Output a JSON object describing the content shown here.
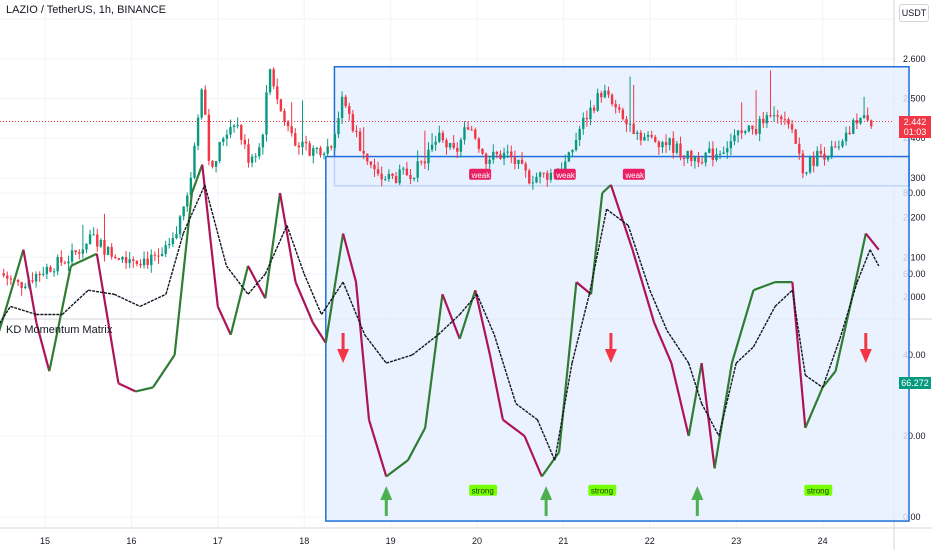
{
  "header": {
    "title": "LAZIO / TetherUS, 1h, BINANCE",
    "currency": "USDT",
    "last_price": "2.442",
    "countdown": "01:03"
  },
  "indicator": {
    "title": "KD Momentum Matrix",
    "last_value": "66.272"
  },
  "chart_data": [
    {
      "type": "candlestick",
      "title": "LAZIO / TetherUS, 1h, BINANCE",
      "x_ticks": [
        "15",
        "16",
        "17",
        "18",
        "19",
        "20",
        "21",
        "22",
        "23",
        "24"
      ],
      "y_ticks": [
        "2.000",
        "2.100",
        "2.200",
        "2.300",
        "2.400",
        "2.500",
        "2.600",
        "2.700"
      ],
      "ylim": [
        1.99,
        2.72
      ],
      "last_price": 2.442,
      "range_box": {
        "x_start": 18.35,
        "x_end": 25.0,
        "y_low": 2.28,
        "y_high": 2.58
      },
      "close_series": [
        {
          "x": 14.48,
          "y": 2.06
        },
        {
          "x": 14.7,
          "y": 2.03
        },
        {
          "x": 14.85,
          "y": 2.05
        },
        {
          "x": 15.0,
          "y": 2.07
        },
        {
          "x": 15.3,
          "y": 2.1
        },
        {
          "x": 15.55,
          "y": 2.15
        },
        {
          "x": 15.75,
          "y": 2.11
        },
        {
          "x": 16.0,
          "y": 2.1
        },
        {
          "x": 16.3,
          "y": 2.09
        },
        {
          "x": 16.5,
          "y": 2.14
        },
        {
          "x": 16.7,
          "y": 2.32
        },
        {
          "x": 16.82,
          "y": 2.55
        },
        {
          "x": 16.92,
          "y": 2.3
        },
        {
          "x": 17.05,
          "y": 2.4
        },
        {
          "x": 17.2,
          "y": 2.45
        },
        {
          "x": 17.35,
          "y": 2.35
        },
        {
          "x": 17.5,
          "y": 2.38
        },
        {
          "x": 17.6,
          "y": 2.58
        },
        {
          "x": 17.75,
          "y": 2.45
        },
        {
          "x": 17.95,
          "y": 2.38
        },
        {
          "x": 18.1,
          "y": 2.37
        },
        {
          "x": 18.3,
          "y": 2.38
        },
        {
          "x": 18.45,
          "y": 2.5
        },
        {
          "x": 18.65,
          "y": 2.38
        },
        {
          "x": 18.85,
          "y": 2.3
        },
        {
          "x": 19.05,
          "y": 2.3
        },
        {
          "x": 19.3,
          "y": 2.32
        },
        {
          "x": 19.55,
          "y": 2.4
        },
        {
          "x": 19.75,
          "y": 2.36
        },
        {
          "x": 19.9,
          "y": 2.44
        },
        {
          "x": 20.1,
          "y": 2.35
        },
        {
          "x": 20.35,
          "y": 2.36
        },
        {
          "x": 20.6,
          "y": 2.3
        },
        {
          "x": 20.85,
          "y": 2.31
        },
        {
          "x": 21.05,
          "y": 2.34
        },
        {
          "x": 21.2,
          "y": 2.43
        },
        {
          "x": 21.45,
          "y": 2.52
        },
        {
          "x": 21.7,
          "y": 2.44
        },
        {
          "x": 21.95,
          "y": 2.4
        },
        {
          "x": 22.2,
          "y": 2.39
        },
        {
          "x": 22.45,
          "y": 2.35
        },
        {
          "x": 22.75,
          "y": 2.36
        },
        {
          "x": 23.0,
          "y": 2.4
        },
        {
          "x": 23.25,
          "y": 2.43
        },
        {
          "x": 23.45,
          "y": 2.45
        },
        {
          "x": 23.65,
          "y": 2.42
        },
        {
          "x": 23.78,
          "y": 2.32
        },
        {
          "x": 23.95,
          "y": 2.36
        },
        {
          "x": 24.2,
          "y": 2.37
        },
        {
          "x": 24.4,
          "y": 2.45
        },
        {
          "x": 24.6,
          "y": 2.44
        }
      ]
    },
    {
      "type": "line",
      "title": "KD Momentum Matrix",
      "y_ticks": [
        "0.00",
        "20.00",
        "40.00",
        "60.00",
        "80.00"
      ],
      "ylim": [
        -2,
        90
      ],
      "last_value": 66.272,
      "range_box": {
        "x_start": 18.25,
        "x_end": 25.0,
        "y_low": -1,
        "y_high": 89
      },
      "series": [
        {
          "line": "K",
          "points": [
            {
              "x": 14.0,
              "y": 56
            },
            {
              "x": 14.15,
              "y": 44
            },
            {
              "x": 14.35,
              "y": 38
            },
            {
              "x": 14.5,
              "y": 48
            },
            {
              "x": 14.75,
              "y": 66
            },
            {
              "x": 14.9,
              "y": 48
            },
            {
              "x": 15.05,
              "y": 36
            },
            {
              "x": 15.3,
              "y": 62
            },
            {
              "x": 15.6,
              "y": 65
            },
            {
              "x": 15.85,
              "y": 33
            },
            {
              "x": 16.05,
              "y": 31
            },
            {
              "x": 16.25,
              "y": 32
            },
            {
              "x": 16.5,
              "y": 40
            },
            {
              "x": 16.7,
              "y": 80
            },
            {
              "x": 16.82,
              "y": 87
            },
            {
              "x": 17.0,
              "y": 52
            },
            {
              "x": 17.15,
              "y": 45
            },
            {
              "x": 17.35,
              "y": 62
            },
            {
              "x": 17.55,
              "y": 54
            },
            {
              "x": 17.72,
              "y": 80
            },
            {
              "x": 17.9,
              "y": 58
            },
            {
              "x": 18.1,
              "y": 48
            },
            {
              "x": 18.25,
              "y": 43
            },
            {
              "x": 18.45,
              "y": 70
            },
            {
              "x": 18.6,
              "y": 58
            },
            {
              "x": 18.75,
              "y": 24
            },
            {
              "x": 18.95,
              "y": 10
            },
            {
              "x": 19.2,
              "y": 14
            },
            {
              "x": 19.4,
              "y": 22
            },
            {
              "x": 19.6,
              "y": 55
            },
            {
              "x": 19.8,
              "y": 44
            },
            {
              "x": 19.98,
              "y": 56
            },
            {
              "x": 20.15,
              "y": 40
            },
            {
              "x": 20.3,
              "y": 24
            },
            {
              "x": 20.55,
              "y": 20
            },
            {
              "x": 20.75,
              "y": 10
            },
            {
              "x": 20.95,
              "y": 16
            },
            {
              "x": 21.15,
              "y": 58
            },
            {
              "x": 21.32,
              "y": 55
            },
            {
              "x": 21.45,
              "y": 80
            },
            {
              "x": 21.55,
              "y": 82
            },
            {
              "x": 21.8,
              "y": 66
            },
            {
              "x": 22.05,
              "y": 48
            },
            {
              "x": 22.25,
              "y": 38
            },
            {
              "x": 22.45,
              "y": 20
            },
            {
              "x": 22.6,
              "y": 38
            },
            {
              "x": 22.75,
              "y": 12
            },
            {
              "x": 22.95,
              "y": 38
            },
            {
              "x": 23.2,
              "y": 56
            },
            {
              "x": 23.45,
              "y": 58
            },
            {
              "x": 23.65,
              "y": 58
            },
            {
              "x": 23.8,
              "y": 22
            },
            {
              "x": 24.0,
              "y": 32
            },
            {
              "x": 24.15,
              "y": 36
            },
            {
              "x": 24.35,
              "y": 55
            },
            {
              "x": 24.5,
              "y": 70
            },
            {
              "x": 24.65,
              "y": 66
            }
          ]
        },
        {
          "line": "D",
          "points": [
            {
              "x": 14.0,
              "y": 52
            },
            {
              "x": 14.3,
              "y": 42
            },
            {
              "x": 14.6,
              "y": 52
            },
            {
              "x": 14.9,
              "y": 50
            },
            {
              "x": 15.2,
              "y": 50
            },
            {
              "x": 15.5,
              "y": 56
            },
            {
              "x": 15.8,
              "y": 55
            },
            {
              "x": 16.1,
              "y": 52
            },
            {
              "x": 16.4,
              "y": 55
            },
            {
              "x": 16.6,
              "y": 70
            },
            {
              "x": 16.85,
              "y": 82
            },
            {
              "x": 17.1,
              "y": 62
            },
            {
              "x": 17.35,
              "y": 55
            },
            {
              "x": 17.55,
              "y": 60
            },
            {
              "x": 17.8,
              "y": 72
            },
            {
              "x": 18.0,
              "y": 60
            },
            {
              "x": 18.2,
              "y": 50
            },
            {
              "x": 18.45,
              "y": 58
            },
            {
              "x": 18.7,
              "y": 45
            },
            {
              "x": 18.95,
              "y": 38
            },
            {
              "x": 19.25,
              "y": 40
            },
            {
              "x": 19.55,
              "y": 45
            },
            {
              "x": 19.8,
              "y": 50
            },
            {
              "x": 20.0,
              "y": 55
            },
            {
              "x": 20.2,
              "y": 45
            },
            {
              "x": 20.45,
              "y": 28
            },
            {
              "x": 20.7,
              "y": 24
            },
            {
              "x": 20.9,
              "y": 14
            },
            {
              "x": 21.1,
              "y": 38
            },
            {
              "x": 21.3,
              "y": 55
            },
            {
              "x": 21.5,
              "y": 76
            },
            {
              "x": 21.75,
              "y": 72
            },
            {
              "x": 22.0,
              "y": 56
            },
            {
              "x": 22.2,
              "y": 46
            },
            {
              "x": 22.45,
              "y": 38
            },
            {
              "x": 22.6,
              "y": 28
            },
            {
              "x": 22.8,
              "y": 20
            },
            {
              "x": 23.0,
              "y": 38
            },
            {
              "x": 23.2,
              "y": 42
            },
            {
              "x": 23.45,
              "y": 52
            },
            {
              "x": 23.65,
              "y": 56
            },
            {
              "x": 23.8,
              "y": 35
            },
            {
              "x": 24.0,
              "y": 32
            },
            {
              "x": 24.2,
              "y": 44
            },
            {
              "x": 24.4,
              "y": 58
            },
            {
              "x": 24.55,
              "y": 66
            },
            {
              "x": 24.65,
              "y": 62
            }
          ]
        }
      ],
      "labels": [
        {
          "text": "weak",
          "x": 14.15,
          "y": 84
        },
        {
          "text": "weak",
          "x": 19.92,
          "y": 84
        },
        {
          "text": "weak",
          "x": 20.9,
          "y": 84
        },
        {
          "text": "weak",
          "x": 21.7,
          "y": 84
        },
        {
          "text": "strong",
          "x": 14.05,
          "y": 6
        },
        {
          "text": "strong",
          "x": 19.92,
          "y": 6
        },
        {
          "text": "strong",
          "x": 21.3,
          "y": 6
        },
        {
          "text": "strong",
          "x": 23.8,
          "y": 6
        }
      ],
      "arrows": [
        {
          "direction": "down",
          "x": 18.45,
          "color": "#f23645"
        },
        {
          "direction": "down",
          "x": 21.55,
          "color": "#f23645"
        },
        {
          "direction": "down",
          "x": 24.5,
          "color": "#f23645"
        },
        {
          "direction": "up",
          "x": 18.95,
          "color": "#4caf50"
        },
        {
          "direction": "up",
          "x": 20.8,
          "color": "#4caf50"
        },
        {
          "direction": "up",
          "x": 22.55,
          "color": "#4caf50"
        }
      ]
    }
  ],
  "colors": {
    "up": "#089981",
    "down": "#f23645",
    "k_up": "#2e7d32",
    "k_down": "#ad1457",
    "box_fill": "#e6efff",
    "box_stroke": "#1e6fd9",
    "grid": "#f0f3fa"
  }
}
